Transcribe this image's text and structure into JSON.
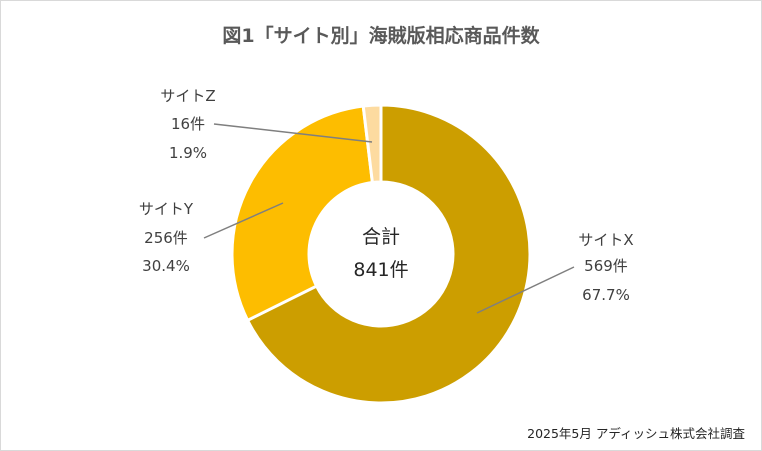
{
  "chart_data": {
    "type": "pie",
    "title": "図1「サイト別」海賊版相応商品件数",
    "total_label": "合計",
    "total_value": "841件",
    "source": "2025年5月 アディッシュ株式会社調査",
    "slices": [
      {
        "name": "サイトX",
        "count": 569,
        "count_label": "569件",
        "percent": 67.7,
        "percent_label": "67.7%",
        "color": "#cc9e00"
      },
      {
        "name": "サイトY",
        "count": 256,
        "count_label": "256件",
        "percent": 30.4,
        "percent_label": "30.4%",
        "color": "#fdbd00"
      },
      {
        "name": "サイトZ",
        "count": 16,
        "count_label": "16件",
        "percent": 1.9,
        "percent_label": "1.9%",
        "color": "#fddba0"
      }
    ]
  }
}
